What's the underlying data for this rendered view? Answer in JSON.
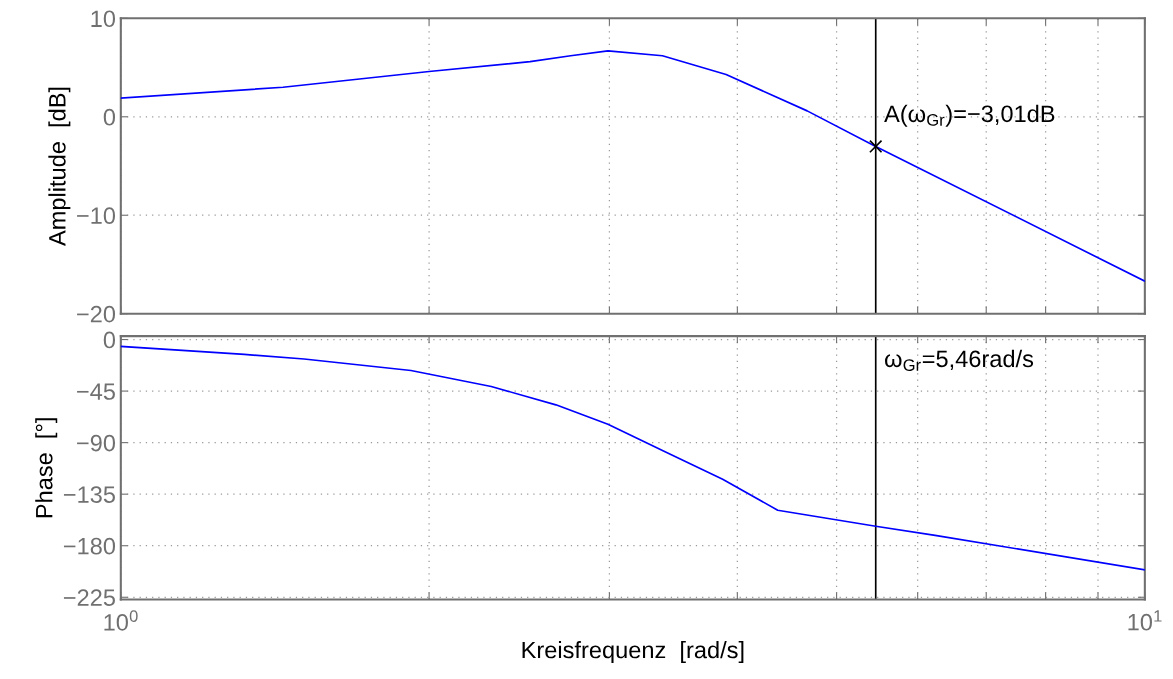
{
  "chart_data": [
    {
      "type": "line",
      "ylabel": "Amplitude  [dB]",
      "log": "x",
      "grid": true,
      "tick_labels": "y",
      "xlim": [
        1,
        10
      ],
      "xticks": [
        {
          "value": 1,
          "label": null
        },
        {
          "value": 2,
          "label": null
        },
        {
          "value": 3,
          "label": null
        },
        {
          "value": 4,
          "label": null
        },
        {
          "value": 5,
          "label": null
        },
        {
          "value": 6,
          "label": null
        },
        {
          "value": 7,
          "label": null
        },
        {
          "value": 8,
          "label": null
        },
        {
          "value": 9,
          "label": null
        },
        {
          "value": 10,
          "label": null
        }
      ],
      "ylim": [
        -20,
        10
      ],
      "yticks": [
        -20,
        -10,
        0,
        10
      ],
      "series": [
        {
          "color": "#0000ff",
          "marker": "none",
          "line_style": "solid",
          "x": [
            1,
            1.44,
            2.0,
            2.51,
            2.75,
            2.99,
            3.38,
            3.9,
            4.68,
            5.46,
            10
          ],
          "values": [
            1.9,
            3.0,
            4.6,
            5.6,
            6.2,
            6.7,
            6.2,
            4.3,
            0.6,
            -3.01,
            -16.7
          ]
        },
        {
          "type": "scatter",
          "color": "#000000",
          "marker": "cross",
          "x": [
            5.46
          ],
          "values": [
            -3.01
          ]
        }
      ],
      "ref_lines": [
        {
          "axis": "x",
          "value": 5.46,
          "color": "#000000",
          "line_style": "solid"
        }
      ],
      "annotations": [
        {
          "text": "A(ω$_{Gr}$)=−3,01dB",
          "x": 5.46,
          "y": -3.01
        }
      ]
    },
    {
      "type": "line",
      "xlabel": "Kreisfrequenz  [rad/s]",
      "ylabel": "Phase  [°]",
      "log": "x",
      "grid": true,
      "xlim": [
        1,
        10
      ],
      "xticks": [
        {
          "value": 1,
          "label": "10$^{0}$"
        },
        {
          "value": 2,
          "label": null
        },
        {
          "value": 3,
          "label": null
        },
        {
          "value": 4,
          "label": null
        },
        {
          "value": 5,
          "label": null
        },
        {
          "value": 6,
          "label": null
        },
        {
          "value": 7,
          "label": null
        },
        {
          "value": 8,
          "label": null
        },
        {
          "value": 9,
          "label": null
        },
        {
          "value": 10,
          "label": "10$^{1}$"
        }
      ],
      "ylim": [
        -227,
        3
      ],
      "yticks": [
        -225,
        -180,
        -135,
        -90,
        -45,
        0
      ],
      "series": [
        {
          "color": "#0000ff",
          "marker": "none",
          "line_style": "solid",
          "x": [
            1,
            1.32,
            1.51,
            1.92,
            2.3,
            2.66,
            2.99,
            3.4,
            3.87,
            4.38,
            5.46,
            6.24,
            10
          ],
          "values": [
            -6,
            -13,
            -17,
            -27,
            -41,
            -57,
            -74,
            -98,
            -122,
            -149,
            -163,
            -171,
            -201
          ]
        }
      ],
      "ref_lines": [
        {
          "axis": "x",
          "value": 5.46,
          "label": "ω$_{Gr}$=5,46rad/s",
          "color": "#000000",
          "line_style": "solid"
        }
      ]
    }
  ]
}
